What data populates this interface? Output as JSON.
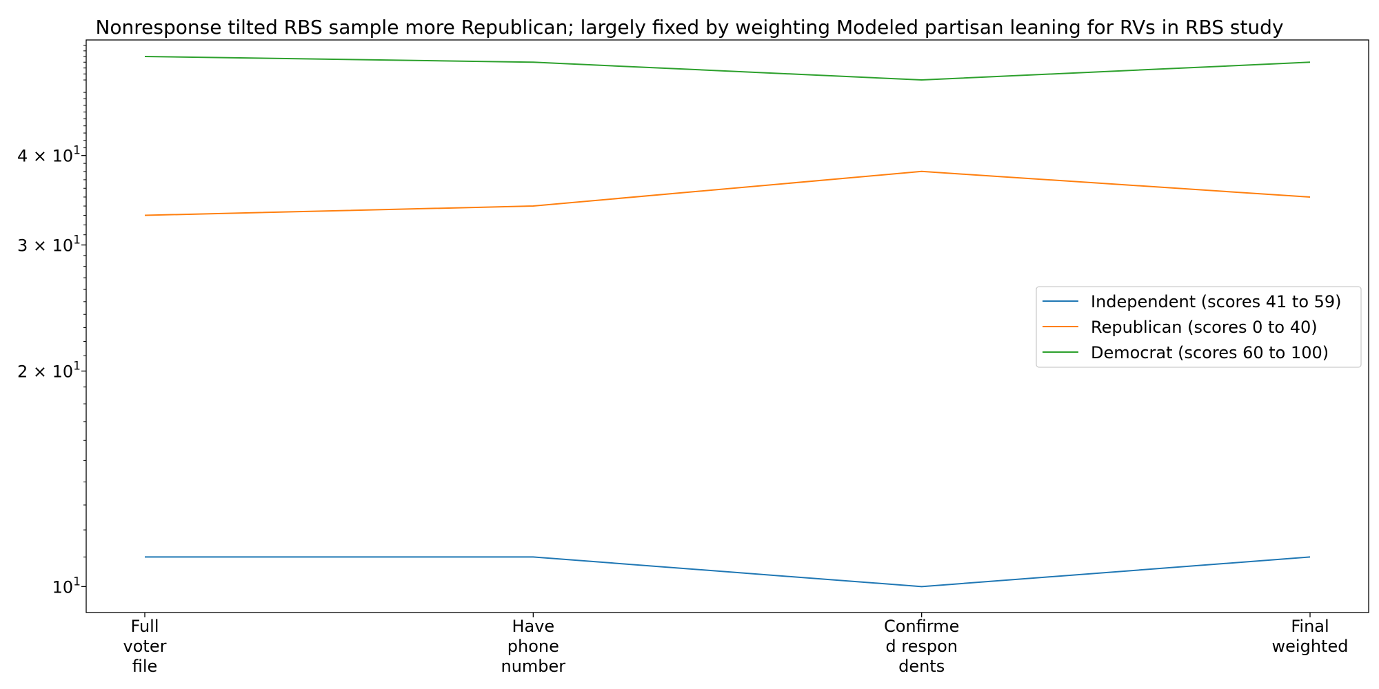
{
  "chart_data": {
    "type": "line",
    "title": "Nonresponse tilted RBS sample more Republican; largely fixed by weighting Modeled partisan leaning for RVs in RBS study",
    "xlabel": "",
    "ylabel": "",
    "categories": [
      [
        "Full",
        "voter",
        "file"
      ],
      [
        "Have",
        "phone",
        "number"
      ],
      [
        "Confirme",
        "d respon",
        "dents"
      ],
      [
        "Final",
        "weighted"
      ]
    ],
    "series": [
      {
        "name": "Independent (scores 41 to 59)",
        "color": "#1f77b4",
        "values": [
          11,
          11,
          10,
          11
        ]
      },
      {
        "name": "Republican (scores 0 to 40)",
        "color": "#ff7f0e",
        "values": [
          33,
          34,
          38,
          35
        ]
      },
      {
        "name": "Democrat (scores 60 to 100)",
        "color": "#2ca02c",
        "values": [
          55,
          54,
          51,
          54
        ]
      }
    ],
    "yscale": "log",
    "ylim": [
      9.2,
      58
    ],
    "yticks": [
      {
        "value": 10,
        "base": "10",
        "exp": "1"
      },
      {
        "value": 20,
        "base": "2 × 10",
        "exp": "1"
      },
      {
        "value": 30,
        "base": "3 × 10",
        "exp": "1"
      },
      {
        "value": 40,
        "base": "4 × 10",
        "exp": "1"
      }
    ],
    "grid": false,
    "legend_position": "center-right"
  }
}
